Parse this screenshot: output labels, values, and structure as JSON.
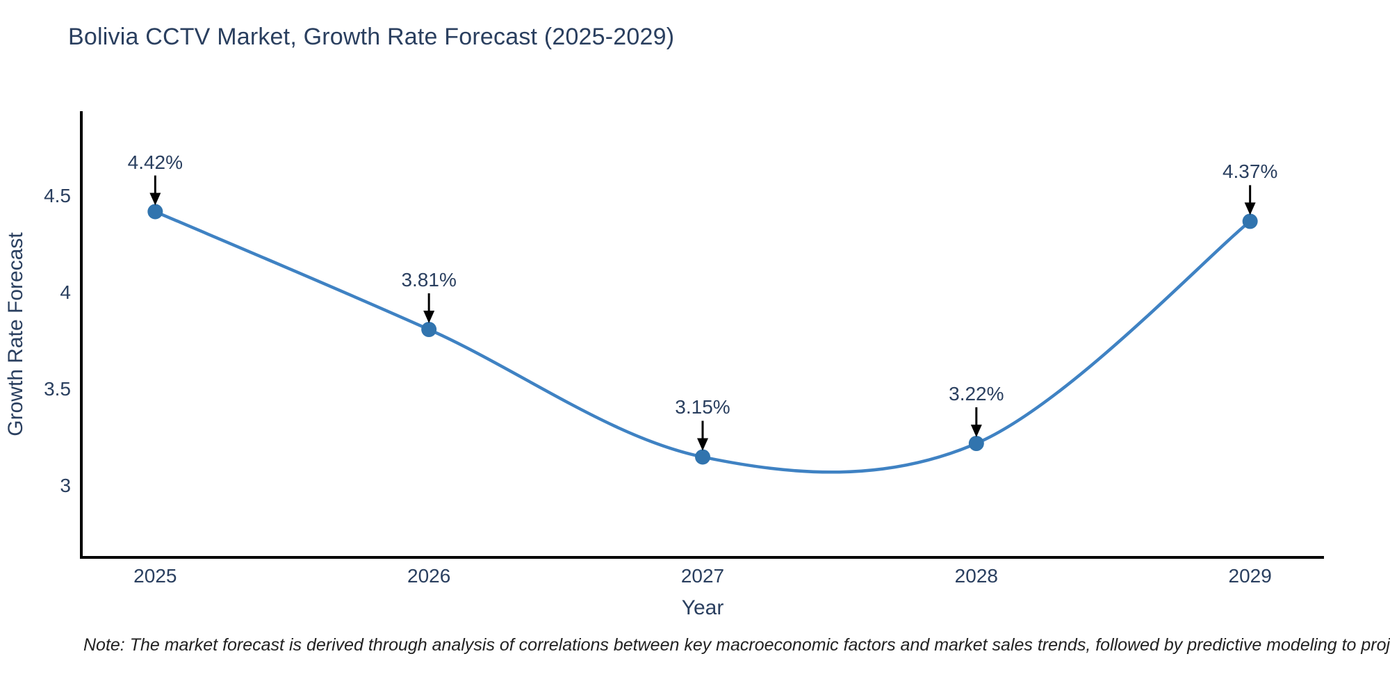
{
  "note": "Note: The market forecast is derived through analysis of correlations between key macroeconomic factors and market sales trends, followed by predictive modeling to project future sales",
  "chart_data": {
    "type": "line",
    "title": "Bolivia CCTV Market, Growth Rate Forecast (2025-2029)",
    "xlabel": "Year",
    "ylabel": "Growth Rate Forecast",
    "x": [
      2025,
      2026,
      2027,
      2028,
      2029
    ],
    "y": [
      4.42,
      3.81,
      3.15,
      3.22,
      4.37
    ],
    "point_labels": [
      "4.42%",
      "3.81%",
      "3.15%",
      "3.22%",
      "4.37%"
    ],
    "x_tick_labels": [
      "2025",
      "2026",
      "2027",
      "2028",
      "2029"
    ],
    "x_tick_values": [
      2025,
      2026,
      2027,
      2028,
      2029
    ],
    "y_tick_labels": [
      "3",
      "3.5",
      "4",
      "4.5"
    ],
    "y_tick_values": [
      3,
      3.5,
      4,
      4.5
    ],
    "xlim": [
      2024.73,
      2029.27
    ],
    "ylim": [
      2.63,
      4.94
    ],
    "line_shape": "spline",
    "grid": false,
    "legend": "none",
    "colors": {
      "line": "#3f82c3",
      "marker": "#3174ae",
      "axis": "#000000",
      "arrow": "#000000",
      "title_text": "#2a3f5f",
      "tick_text": "#2a3f5f",
      "note_text": "#222222"
    }
  }
}
